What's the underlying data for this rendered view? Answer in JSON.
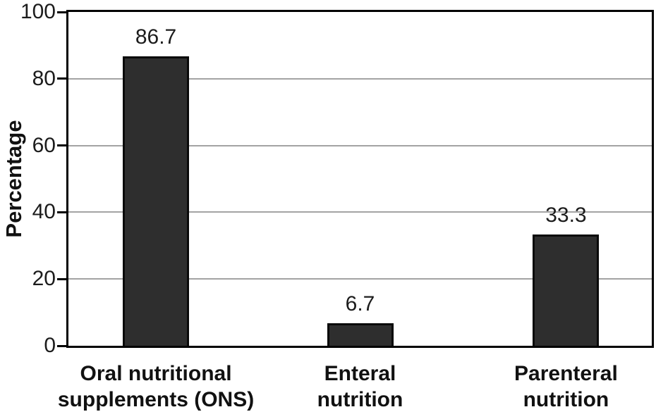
{
  "chart_data": {
    "type": "bar",
    "title": "",
    "xlabel": "",
    "ylabel": "Percentage",
    "ylim": [
      0,
      100
    ],
    "yticks": [
      0,
      20,
      40,
      60,
      80,
      100
    ],
    "grid": true,
    "legend": false,
    "categories": [
      "Oral nutritional\nsupplements (ONS)",
      "Enteral\nnutrition",
      "Parenteral\nnutrition"
    ],
    "values": [
      86.7,
      6.7,
      33.3
    ],
    "value_labels": [
      "86.7",
      "6.7",
      "33.3"
    ],
    "colors": {
      "bar_fill": "#2e2e2e",
      "bar_border": "#0a0a0a",
      "gridline": "#a3a3a3",
      "axis": "#000000",
      "text": "#1c1c1c",
      "background": "#ffffff"
    }
  }
}
